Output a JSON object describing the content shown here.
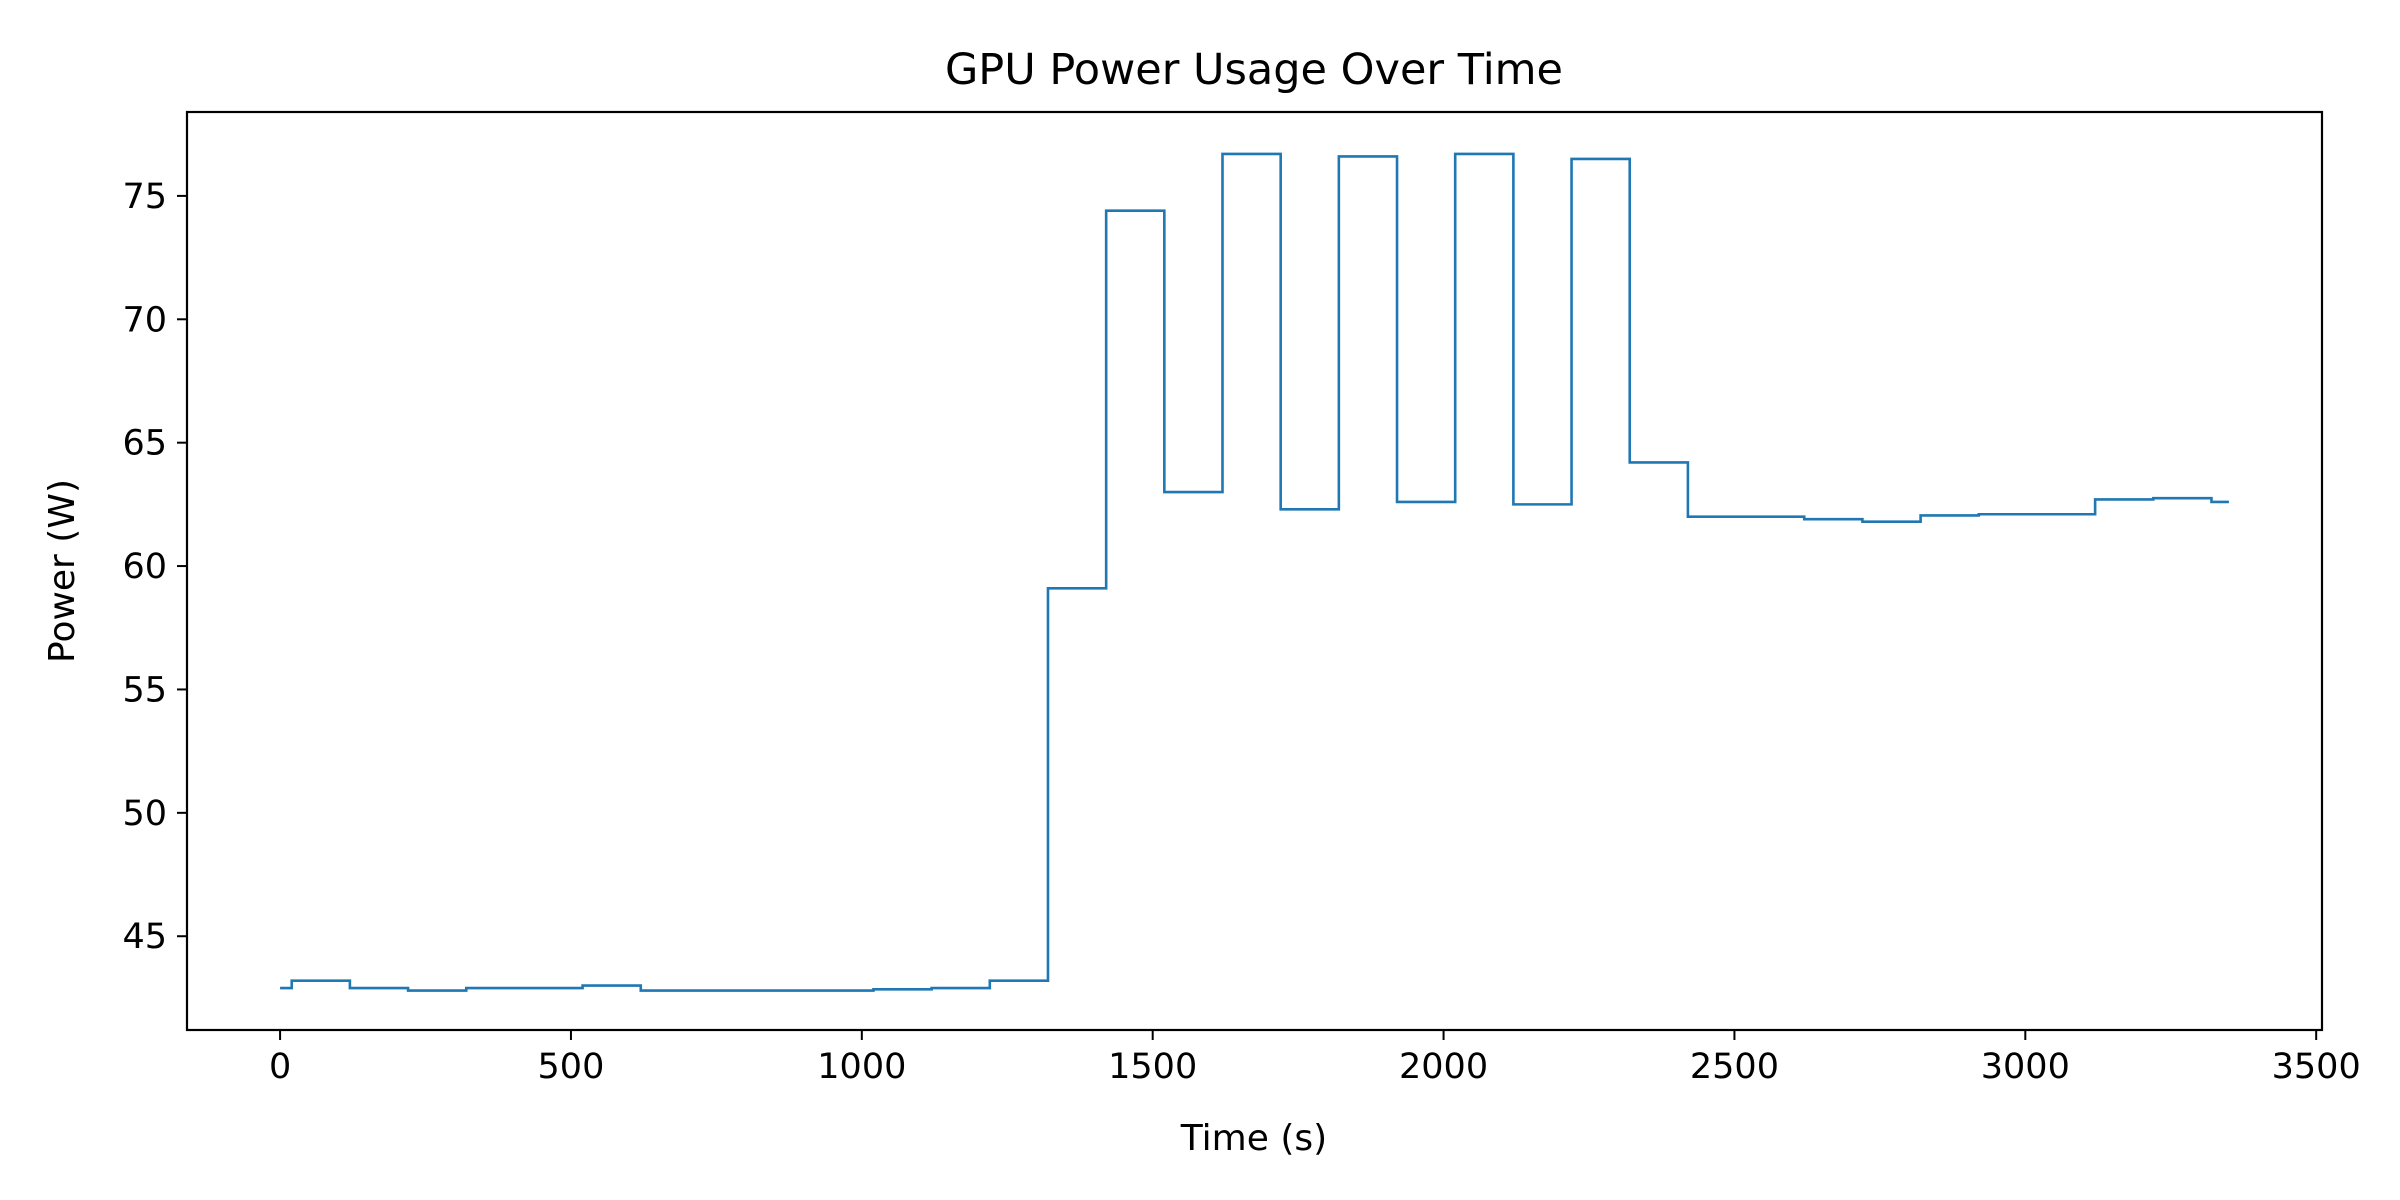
{
  "chart_data": {
    "type": "line",
    "step": "post",
    "title": "GPU Power Usage Over Time",
    "xlabel": "Time (s)",
    "ylabel": "Power (W)",
    "xlim": [
      -160,
      3510
    ],
    "ylim": [
      41.2,
      78.4
    ],
    "xticks": [
      0,
      500,
      1000,
      1500,
      2000,
      2500,
      3000,
      3500
    ],
    "yticks": [
      45,
      50,
      55,
      60,
      65,
      70,
      75
    ],
    "grid": false,
    "legend": "none",
    "series": [
      {
        "color": "#1f77b4",
        "x": [
          0,
          20,
          120,
          220,
          320,
          420,
          520,
          620,
          720,
          820,
          920,
          1020,
          1120,
          1220,
          1320,
          1420,
          1520,
          1620,
          1720,
          1820,
          1920,
          2020,
          2120,
          2220,
          2320,
          2420,
          2520,
          2620,
          2720,
          2820,
          2920,
          3020,
          3120,
          3220,
          3320,
          3350
        ],
        "y": [
          42.9,
          43.2,
          42.9,
          42.8,
          42.9,
          42.9,
          43.0,
          42.8,
          42.8,
          42.8,
          42.8,
          42.85,
          42.9,
          43.2,
          59.1,
          74.4,
          63.0,
          76.7,
          62.3,
          76.6,
          62.6,
          76.7,
          62.5,
          76.5,
          64.2,
          62.0,
          62.0,
          61.9,
          61.8,
          62.05,
          62.1,
          62.1,
          62.7,
          62.75,
          62.6,
          62.6
        ]
      }
    ]
  }
}
